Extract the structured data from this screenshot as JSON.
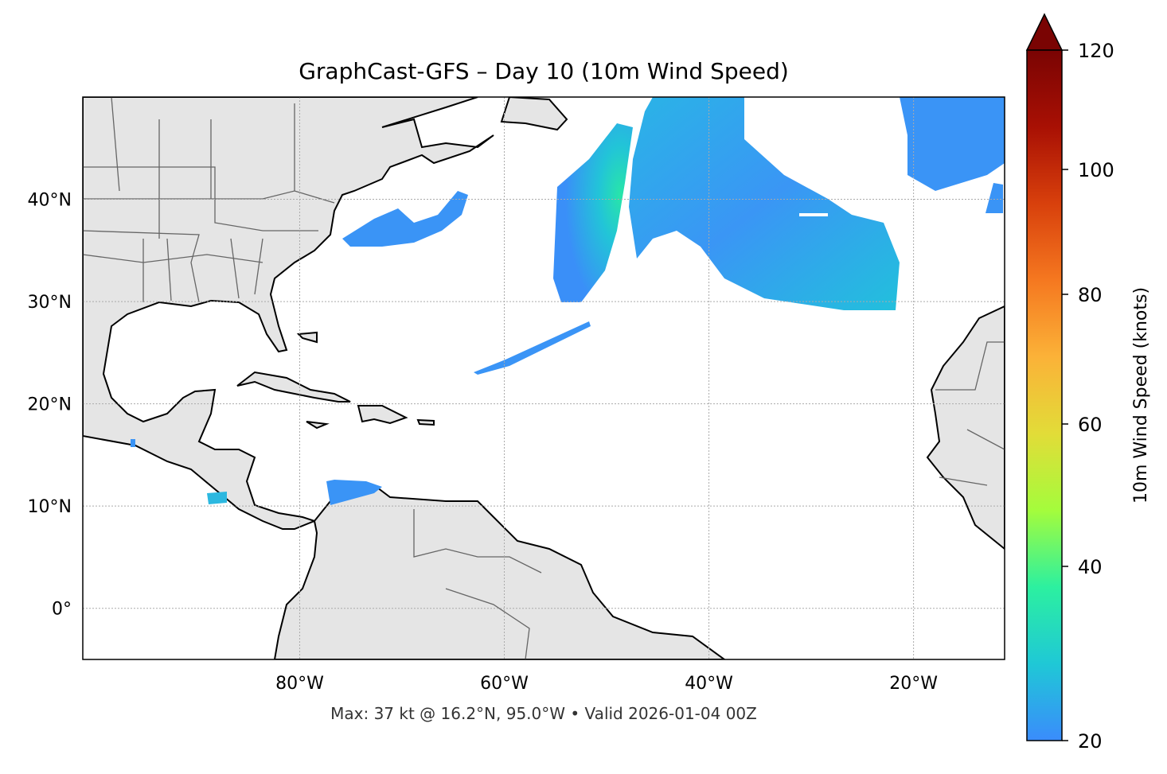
{
  "title": "GraphCast-GFS – Day 10 (10m Wind Speed)",
  "footer": "Max: 37 kt @ 16.2°N, 95.0°W • Valid 2026-01-04 00Z",
  "map": {
    "projection": "PlateCarree",
    "extent_lon": [
      -101.2,
      -11.1
    ],
    "extent_lat": [
      -5,
      50
    ],
    "land_color": "#e5e5e5",
    "ocean_color": "#ffffff",
    "gridlines": "dotted",
    "lon_ticks": [
      {
        "lon": -80,
        "label": "80°W"
      },
      {
        "lon": -60,
        "label": "60°W"
      },
      {
        "lon": -40,
        "label": "40°W"
      },
      {
        "lon": -20,
        "label": "20°W"
      }
    ],
    "lat_ticks": [
      {
        "lat": 40,
        "label": "40°N"
      },
      {
        "lat": 30,
        "label": "30°N"
      },
      {
        "lat": 20,
        "label": "20°N"
      },
      {
        "lat": 10,
        "label": "10°N"
      },
      {
        "lat": 0,
        "label": "0°"
      }
    ]
  },
  "colorbar": {
    "label": "10m Wind Speed (knots)",
    "min": 20,
    "max": 120,
    "extend": "max",
    "ticks": [
      {
        "value": 120,
        "label": "120"
      },
      {
        "value": 100,
        "label": "100"
      },
      {
        "value": 80,
        "label": "80"
      },
      {
        "value": 60,
        "label": "60"
      },
      {
        "value": 40,
        "label": "40"
      },
      {
        "value": 20,
        "label": "20"
      }
    ],
    "colors": [
      "#3a8cfc",
      "#1fc8d6",
      "#2cf0a0",
      "#a4fc3c",
      "#e2dc38",
      "#fbb238",
      "#f57820",
      "#d8400c",
      "#a81004",
      "#7a0403"
    ]
  }
}
